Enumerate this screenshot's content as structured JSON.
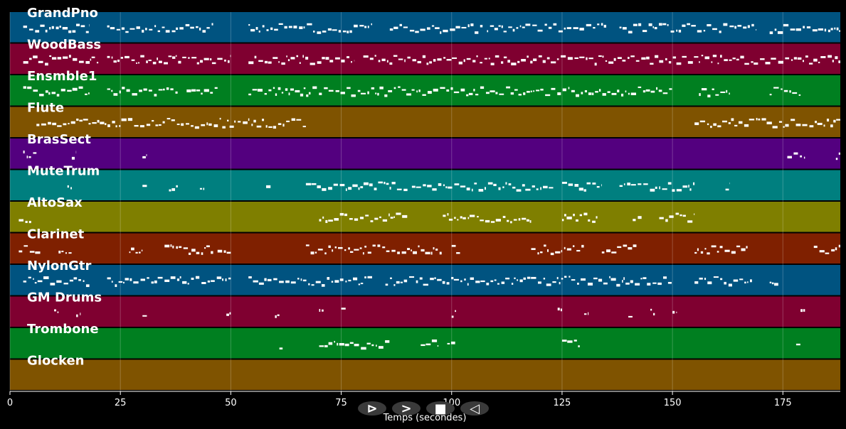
{
  "chart_data": {
    "type": "piano-roll",
    "xlabel": "Temps (secondes)",
    "xlim": [
      0,
      188
    ],
    "xticks": [
      0,
      25,
      50,
      75,
      100,
      125,
      150,
      175
    ],
    "grid": true,
    "tracks": [
      {
        "name": "GrandPno",
        "color": "#005380",
        "segments": [
          [
            3,
            18
          ],
          [
            22,
            46
          ],
          [
            54,
            82
          ],
          [
            86,
            107
          ],
          [
            108,
            135
          ],
          [
            138,
            169
          ],
          [
            172,
            188
          ]
        ]
      },
      {
        "name": "WoodBass",
        "color": "#7f0030",
        "segments": [
          [
            3,
            20
          ],
          [
            22,
            50
          ],
          [
            54,
            78
          ],
          [
            80,
            188
          ]
        ]
      },
      {
        "name": "Ensmble1",
        "color": "#007f20",
        "segments": [
          [
            3,
            18
          ],
          [
            22,
            38
          ],
          [
            40,
            47
          ],
          [
            54,
            150
          ],
          [
            156,
            163
          ],
          [
            172,
            179
          ]
        ]
      },
      {
        "name": "Flute",
        "color": "#7f5300",
        "segments": [
          [
            6,
            67
          ],
          [
            155,
            188
          ]
        ]
      },
      {
        "name": "BrasSect",
        "color": "#53007f",
        "segments": [
          [
            3,
            6
          ],
          [
            14,
            15
          ],
          [
            30,
            31
          ],
          [
            176,
            180
          ],
          [
            187,
            188
          ]
        ]
      },
      {
        "name": "MuteTrum",
        "color": "#007f7f",
        "segments": [
          [
            13,
            14
          ],
          [
            30,
            31
          ],
          [
            36,
            38
          ],
          [
            43,
            44
          ],
          [
            58,
            59
          ],
          [
            67,
            90
          ],
          [
            91,
            123
          ],
          [
            125,
            134
          ],
          [
            138,
            155
          ],
          [
            162,
            163
          ]
        ]
      },
      {
        "name": "AltoSax",
        "color": "#7f7f00",
        "segments": [
          [
            2,
            5
          ],
          [
            70,
            90
          ],
          [
            98,
            118
          ],
          [
            125,
            133
          ],
          [
            141,
            143
          ],
          [
            147,
            155
          ]
        ]
      },
      {
        "name": "Clarinet",
        "color": "#7f2000",
        "segments": [
          [
            2,
            7
          ],
          [
            11,
            14
          ],
          [
            27,
            30
          ],
          [
            35,
            46
          ],
          [
            47,
            50
          ],
          [
            67,
            77
          ],
          [
            77,
            98
          ],
          [
            100,
            102
          ],
          [
            118,
            130
          ],
          [
            134,
            142
          ],
          [
            155,
            167
          ],
          [
            182,
            188
          ]
        ]
      },
      {
        "name": "NylonGtr",
        "color": "#005380",
        "segments": [
          [
            3,
            18
          ],
          [
            22,
            50
          ],
          [
            54,
            82
          ],
          [
            85,
            150
          ],
          [
            155,
            168
          ],
          [
            172,
            174
          ]
        ]
      },
      {
        "name": "GM Drums",
        "color": "#7f0030",
        "segments": [
          [
            10,
            11
          ],
          [
            15,
            16
          ],
          [
            30,
            31
          ],
          [
            49,
            50
          ],
          [
            60,
            61
          ],
          [
            70,
            71
          ],
          [
            75,
            76
          ],
          [
            100,
            101
          ],
          [
            124,
            125
          ],
          [
            130,
            131
          ],
          [
            140,
            141
          ],
          [
            145,
            146
          ],
          [
            150,
            151
          ],
          [
            179,
            180
          ]
        ]
      },
      {
        "name": "Trombone",
        "color": "#007f20",
        "segments": [
          [
            61,
            62
          ],
          [
            70,
            86
          ],
          [
            93,
            97
          ],
          [
            99,
            101
          ],
          [
            125,
            129
          ],
          [
            178,
            179
          ]
        ]
      },
      {
        "name": "Glocken",
        "color": "#7f5300",
        "segments": []
      }
    ]
  },
  "controls": [
    {
      "name": "play-button",
      "icon": "play-icon",
      "symbol": "⊳"
    },
    {
      "name": "forward-button",
      "icon": "forward-icon",
      "symbol": ">"
    },
    {
      "name": "stop-button",
      "icon": "stop-icon",
      "symbol": "■"
    },
    {
      "name": "back-button",
      "icon": "back-icon",
      "symbol": "◁"
    }
  ]
}
